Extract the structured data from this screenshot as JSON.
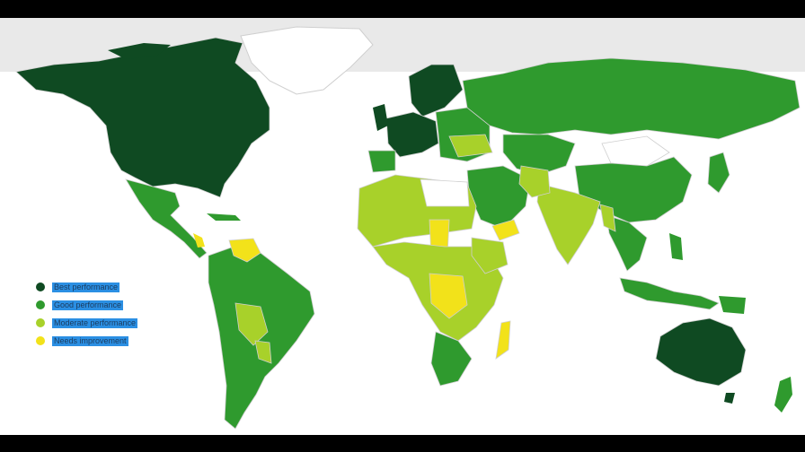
{
  "legend": {
    "items": [
      {
        "label": "Best performance",
        "color": "#0f4a22"
      },
      {
        "label": "Good performance",
        "color": "#2f9a2e"
      },
      {
        "label": "Moderate performance",
        "color": "#a8d12a"
      },
      {
        "label": "Needs improvement",
        "color": "#f2e21a"
      }
    ],
    "label_highlight": "#2b8fe3"
  },
  "map": {
    "ocean_color": "#ffffff",
    "no_data_color": "#ffffff",
    "border_color": "#cfcfcf"
  }
}
